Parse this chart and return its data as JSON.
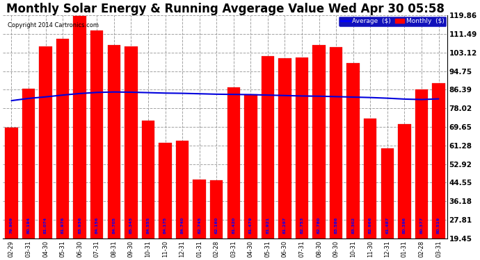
{
  "title": "Monthly Solar Energy & Running Avgerage Value Wed Apr 30 05:58",
  "copyright": "Copyright 2014 Cartronics.com",
  "categories": [
    "02-29",
    "03-31",
    "04-30",
    "05-31",
    "06-30",
    "07-31",
    "08-31",
    "09-30",
    "10-31",
    "11-30",
    "12-31",
    "01-31",
    "02-28",
    "03-31",
    "04-30",
    "05-31",
    "06-30",
    "07-31",
    "08-30",
    "09-30",
    "10-31",
    "11-30",
    "12-31",
    "01-31",
    "02-28",
    "03-31"
  ],
  "bar_heights": [
    69.5,
    87.0,
    106.0,
    109.5,
    119.5,
    113.0,
    106.5,
    106.0,
    72.5,
    62.5,
    63.5,
    46.0,
    45.5,
    87.5,
    84.5,
    101.5,
    100.5,
    101.0,
    106.5,
    105.5,
    98.5,
    73.5,
    60.0,
    71.0,
    86.5,
    89.5
  ],
  "bar_labels": [
    "79.909",
    "80.194",
    "81.074",
    "81.976",
    "83.936",
    "84.156",
    "84.705",
    "85.345",
    "84.555",
    "84.175",
    "84.740",
    "82.745",
    "62.160",
    "81.420",
    "81.479",
    "81.921",
    "81.297",
    "82.753",
    "82.780",
    "83.586",
    "83.302",
    "82.966",
    "61.487",
    "80.396",
    "80.377",
    "80.519"
  ],
  "avg_line": [
    81.5,
    82.5,
    83.2,
    84.0,
    84.7,
    85.2,
    85.4,
    85.3,
    85.1,
    84.9,
    84.8,
    84.6,
    84.4,
    84.3,
    84.2,
    84.0,
    83.8,
    83.6,
    83.5,
    83.3,
    83.1,
    82.9,
    82.6,
    82.2,
    82.0,
    82.3
  ],
  "bar_color": "#ff0000",
  "line_color": "#0000dd",
  "background_color": "#ffffff",
  "grid_color": "#999999",
  "yticks": [
    19.45,
    27.81,
    36.18,
    44.55,
    52.92,
    61.28,
    69.65,
    78.02,
    86.39,
    94.75,
    103.12,
    111.49,
    119.86
  ],
  "ylim_min": 19.45,
  "ylim_max": 119.86,
  "title_fontsize": 12,
  "legend_label_avg": "Average  ($)",
  "legend_label_monthly": "Monthly  ($)"
}
